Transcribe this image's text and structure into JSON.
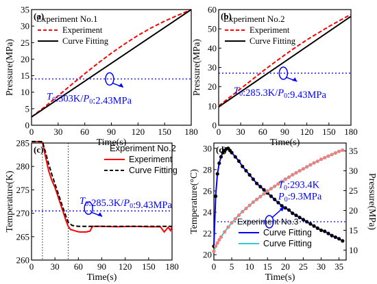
{
  "chart_data": [
    {
      "panel": "(a)",
      "type": "line",
      "xlabel": "Time(s)",
      "ylabel": "Pressure(MPa)",
      "xlim": [
        0,
        180
      ],
      "ylim": [
        0,
        35
      ],
      "xticks": [
        0,
        30,
        60,
        90,
        120,
        150,
        180
      ],
      "yticks": [
        0,
        5,
        10,
        15,
        20,
        25,
        30,
        35
      ],
      "legend_title": "Experiment No.1",
      "legend": [
        "Experiment",
        "Curve Fitting"
      ],
      "annotation": {
        "prefix1": "T",
        "sub1": "0",
        "mid": ":303K/",
        "prefix2": "P",
        "sub2": "0",
        "suffix": ":2.43MPa"
      },
      "hline": 14,
      "series": [
        {
          "name": "Experiment",
          "color": "#ff0000",
          "style": "dashed",
          "x": [
            0,
            15,
            30,
            45,
            60,
            75,
            90,
            105,
            120,
            135,
            150,
            165,
            180
          ],
          "y": [
            2.5,
            5.6,
            8.9,
            12.3,
            15.6,
            18.8,
            21.8,
            24.6,
            27.2,
            29.5,
            31.5,
            33.3,
            35
          ]
        },
        {
          "name": "Curve Fitting",
          "color": "#000000",
          "style": "solid",
          "x": [
            0,
            180
          ],
          "y": [
            2.5,
            35
          ]
        }
      ]
    },
    {
      "panel": "(b)",
      "type": "line",
      "xlabel": "Time(s)",
      "ylabel": "Pressure(MPa)",
      "xlim": [
        0,
        180
      ],
      "ylim": [
        0,
        60
      ],
      "xticks": [
        0,
        30,
        60,
        90,
        120,
        150,
        180
      ],
      "yticks": [
        0,
        10,
        20,
        30,
        40,
        50,
        60
      ],
      "legend_title": "Experiment No.2",
      "legend": [
        "Experiment",
        "Curve Fitting"
      ],
      "annotation": {
        "prefix1": "T",
        "sub1": "0",
        "mid": ":285.3K/",
        "prefix2": "P",
        "sub2": "0",
        "suffix": ":9.43MPa"
      },
      "hline": 27,
      "series": [
        {
          "name": "Experiment",
          "color": "#ff0000",
          "style": "dashed",
          "x": [
            0,
            15,
            30,
            45,
            60,
            75,
            90,
            105,
            120,
            135,
            150,
            165,
            180
          ],
          "y": [
            10,
            14.5,
            19,
            23.5,
            28,
            32.3,
            36.5,
            40.5,
            44.3,
            47.8,
            51.2,
            54.4,
            57.5
          ]
        },
        {
          "name": "Curve Fitting",
          "color": "#000000",
          "style": "solid",
          "x": [
            0,
            180
          ],
          "y": [
            9.5,
            56.5
          ]
        }
      ]
    },
    {
      "panel": "(c)",
      "type": "line",
      "xlabel": "Time(s)",
      "ylabel": "Temperature(K)",
      "xlim": [
        0,
        180
      ],
      "ylim": [
        260,
        285
      ],
      "xticks": [
        0,
        30,
        60,
        90,
        120,
        150,
        180
      ],
      "yticks": [
        260,
        265,
        270,
        275,
        280,
        285
      ],
      "legend_title": "Experiment No.2",
      "legend": [
        "Experiment",
        "Curve Fitting"
      ],
      "annotation": {
        "prefix1": "T",
        "sub1": "0",
        "mid": ":285.3K/",
        "prefix2": "P",
        "sub2": "0",
        "suffix": ":9.43MPa"
      },
      "hline": 270.5,
      "vlines": [
        14,
        47
      ],
      "series": [
        {
          "name": "Experiment",
          "color": "#ff0000",
          "style": "solid",
          "x": [
            0,
            10,
            14,
            18,
            22,
            26,
            30,
            35,
            40,
            44,
            47,
            50,
            55,
            58,
            62,
            70,
            75,
            78,
            90,
            110,
            130,
            150,
            165,
            170,
            175,
            178,
            180
          ],
          "y": [
            285.3,
            285.3,
            285.2,
            282,
            279,
            277,
            275.5,
            273,
            270.5,
            268.5,
            267.2,
            266.5,
            266.3,
            266.1,
            266,
            266,
            266.2,
            267.2,
            267.2,
            267.1,
            267.2,
            267.1,
            267.1,
            266,
            267,
            266.3,
            267.2
          ]
        },
        {
          "name": "Curve Fitting",
          "color": "#000000",
          "style": "dashed",
          "x": [
            0,
            14,
            18,
            22,
            26,
            30,
            35,
            40,
            44,
            47,
            52,
            60,
            80,
            120,
            180
          ],
          "y": [
            285.3,
            285.3,
            283,
            280.5,
            278.3,
            276.3,
            273.8,
            271.3,
            269.4,
            268.1,
            267.4,
            267.2,
            267.2,
            267.2,
            267.2
          ]
        }
      ]
    },
    {
      "panel": "(d)",
      "type": "line",
      "xlabel": "Time(s)",
      "ylabel": "Temperature(°C)",
      "ylabel_right": "Pressure(MPa)",
      "xlim": [
        0,
        37
      ],
      "ylim": [
        19.5,
        30.5
      ],
      "ylim_right": [
        7.5,
        37
      ],
      "xticks": [
        0,
        5,
        10,
        15,
        20,
        25,
        30,
        35
      ],
      "yticks": [
        20,
        22,
        24,
        26,
        28,
        30
      ],
      "yticks_right": [
        10,
        15,
        20,
        25,
        30,
        35
      ],
      "legend_title": "Experiment No.3",
      "legend": [
        "Curve Fitting",
        "Curve Fitting"
      ],
      "legend_colors": [
        "#0000ff",
        "#33cccc"
      ],
      "annotation": {
        "line1_prefix": "T",
        "line1_sub": "0",
        "line1_suffix": ":293.4K",
        "line2_prefix": "P",
        "line2_sub": "0",
        "line2_suffix": ":9.3MPa"
      },
      "hline": 23.1,
      "series": [
        {
          "name": "Temperature",
          "axis": "left",
          "color": "#0000ff",
          "marker": "black",
          "x": [
            0,
            0.5,
            1,
            1.5,
            2,
            2.5,
            3,
            3.5,
            4,
            4.5,
            5,
            6,
            7,
            8,
            9,
            10,
            11,
            12,
            13,
            14,
            15,
            16,
            17,
            18,
            19,
            20,
            21,
            22,
            23,
            24,
            25,
            26,
            27,
            28,
            29,
            30,
            31,
            32,
            33,
            34,
            35,
            36
          ],
          "y": [
            20.8,
            25.5,
            27.6,
            28.6,
            29.2,
            29.6,
            29.8,
            29.95,
            30,
            29.8,
            29.6,
            29.2,
            28.8,
            28.3,
            27.9,
            27.5,
            27.1,
            26.7,
            26.4,
            26.1,
            25.8,
            25.5,
            25.2,
            24.9,
            24.6,
            24.4,
            24.2,
            23.9,
            23.7,
            23.5,
            23.3,
            23.1,
            22.9,
            22.7,
            22.5,
            22.3,
            22.2,
            22.0,
            21.8,
            21.65,
            21.5,
            21.3
          ]
        },
        {
          "name": "Pressure",
          "axis": "right",
          "color": "#33cccc",
          "marker": "#f08080",
          "x": [
            0,
            0.5,
            1,
            1.5,
            2,
            3,
            4,
            5,
            6,
            7,
            8,
            9,
            10,
            11,
            12,
            13,
            14,
            15,
            16,
            17,
            18,
            19,
            20,
            21,
            22,
            23,
            24,
            25,
            26,
            27,
            28,
            29,
            30,
            31,
            32,
            33,
            34,
            35,
            36
          ],
          "y": [
            9.7,
            11,
            11.8,
            12.6,
            13.3,
            14.6,
            15.8,
            16.9,
            17.9,
            18.8,
            19.7,
            20.5,
            21.3,
            22.1,
            22.8,
            23.5,
            24.2,
            24.9,
            25.5,
            26.1,
            26.7,
            27.3,
            27.9,
            28.4,
            29,
            29.5,
            30,
            30.5,
            31,
            31.5,
            32,
            32.4,
            32.9,
            33.3,
            33.7,
            34.1,
            34.5,
            34.9,
            35.2
          ]
        }
      ]
    }
  ]
}
